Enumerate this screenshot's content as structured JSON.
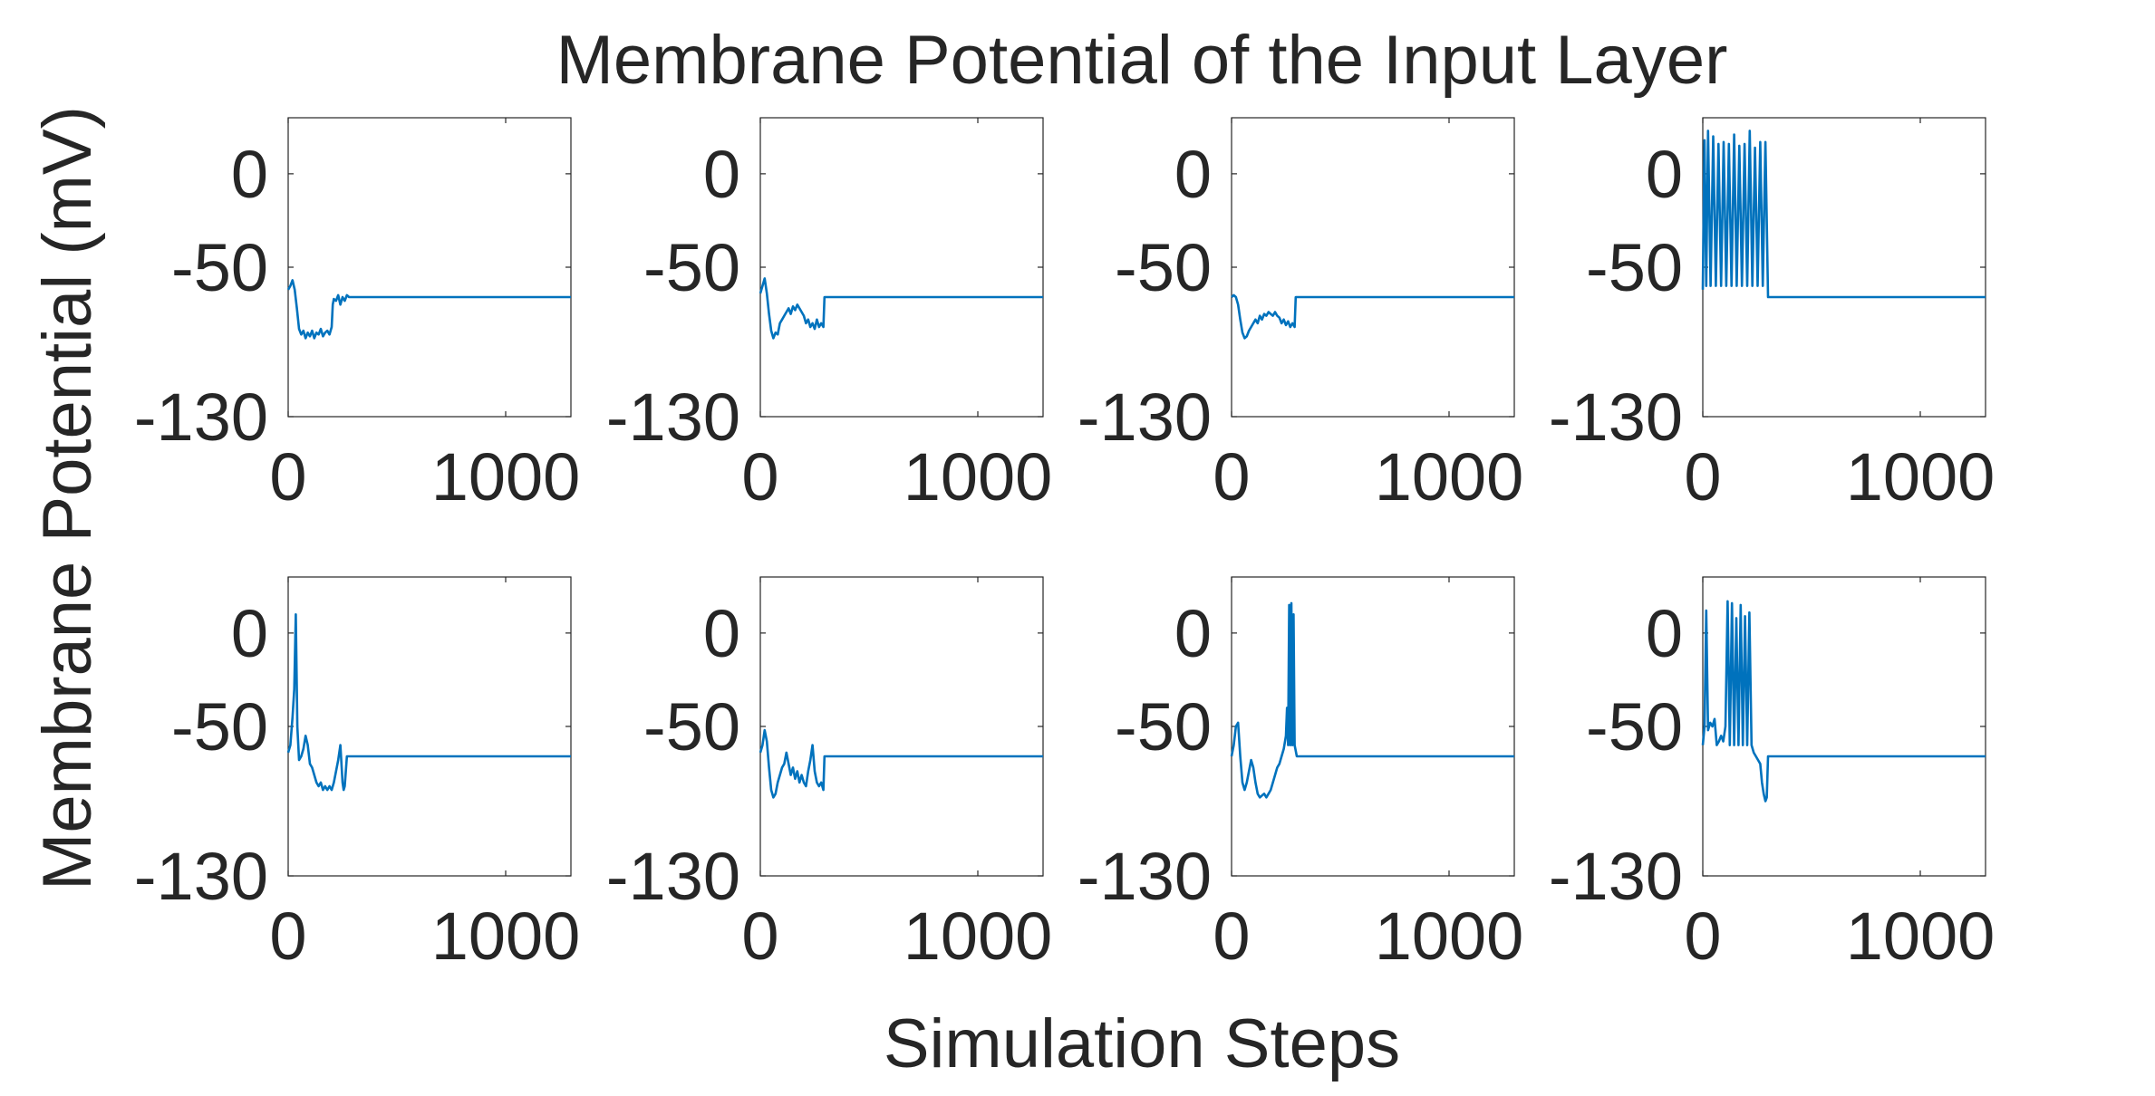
{
  "figure": {
    "title": "Membrane Potential of the Input Layer",
    "xlabel": "Simulation Steps",
    "ylabel": "Membrane Potential (mV)",
    "line_color": "#0072BD",
    "axis_color": "#262626"
  },
  "chart_data": [
    {
      "type": "line",
      "row": 1,
      "col": 1,
      "xlim": [
        0,
        1300
      ],
      "ylim": [
        -130,
        30
      ],
      "yticks": [
        -130,
        -50,
        0
      ],
      "ytick_labels": [
        "-130",
        "-50",
        "0"
      ],
      "xticks": [
        0,
        1000
      ],
      "xtick_labels": [
        "0",
        "1000"
      ],
      "series": [
        {
          "x": [
            0,
            10,
            20,
            30,
            40,
            50,
            60,
            70,
            80,
            90,
            100,
            110,
            120,
            130,
            140,
            150,
            160,
            170,
            180,
            190,
            200,
            205,
            210,
            220,
            230,
            240,
            250,
            260,
            270,
            280,
            300,
            1300
          ],
          "y": [
            -62,
            -60,
            -57,
            -62,
            -72,
            -83,
            -86,
            -84,
            -88,
            -85,
            -87,
            -84,
            -88,
            -85,
            -86,
            -83,
            -87,
            -85,
            -84,
            -86,
            -82,
            -70,
            -67,
            -68,
            -65,
            -70,
            -66,
            -68,
            -65,
            -66,
            -66,
            -66
          ]
        }
      ]
    },
    {
      "type": "line",
      "row": 1,
      "col": 2,
      "xlim": [
        0,
        1300
      ],
      "ylim": [
        -130,
        30
      ],
      "yticks": [
        -130,
        -50,
        0
      ],
      "ytick_labels": [
        "-130",
        "-50",
        "0"
      ],
      "xticks": [
        0,
        1000
      ],
      "xtick_labels": [
        "0",
        "1000"
      ],
      "series": [
        {
          "x": [
            0,
            10,
            20,
            30,
            40,
            50,
            60,
            70,
            80,
            90,
            100,
            110,
            120,
            130,
            140,
            150,
            160,
            170,
            180,
            190,
            200,
            210,
            220,
            230,
            240,
            250,
            260,
            270,
            280,
            290,
            295,
            300,
            1300
          ],
          "y": [
            -64,
            -60,
            -56,
            -64,
            -75,
            -84,
            -88,
            -85,
            -86,
            -80,
            -78,
            -76,
            -74,
            -72,
            -75,
            -71,
            -73,
            -70,
            -72,
            -74,
            -76,
            -80,
            -78,
            -82,
            -80,
            -83,
            -78,
            -82,
            -80,
            -82,
            -66,
            -66,
            -66
          ]
        }
      ]
    },
    {
      "type": "line",
      "row": 1,
      "col": 3,
      "xlim": [
        0,
        1300
      ],
      "ylim": [
        -130,
        30
      ],
      "yticks": [
        -130,
        -50,
        0
      ],
      "ytick_labels": [
        "-130",
        "-50",
        "0"
      ],
      "xticks": [
        0,
        1000
      ],
      "xtick_labels": [
        "0",
        "1000"
      ],
      "series": [
        {
          "x": [
            0,
            10,
            20,
            30,
            40,
            50,
            60,
            70,
            80,
            90,
            100,
            110,
            120,
            130,
            140,
            150,
            160,
            170,
            180,
            190,
            200,
            210,
            220,
            230,
            240,
            250,
            260,
            270,
            280,
            290,
            295,
            300,
            1300
          ],
          "y": [
            -66,
            -65,
            -66,
            -70,
            -78,
            -85,
            -88,
            -87,
            -84,
            -82,
            -80,
            -78,
            -80,
            -76,
            -78,
            -75,
            -76,
            -74,
            -75,
            -76,
            -74,
            -76,
            -77,
            -80,
            -78,
            -81,
            -79,
            -82,
            -80,
            -82,
            -66,
            -66,
            -66
          ]
        }
      ]
    },
    {
      "type": "line",
      "row": 1,
      "col": 4,
      "xlim": [
        0,
        1300
      ],
      "ylim": [
        -130,
        30
      ],
      "yticks": [
        -130,
        -50,
        0
      ],
      "ytick_labels": [
        "-130",
        "-50",
        "0"
      ],
      "xticks": [
        0,
        1000
      ],
      "xtick_labels": [
        "0",
        "1000"
      ],
      "series": [
        {
          "x": [
            0,
            8,
            16,
            24,
            36,
            48,
            60,
            72,
            84,
            96,
            108,
            120,
            132,
            144,
            156,
            168,
            180,
            192,
            204,
            216,
            228,
            240,
            252,
            264,
            276,
            288,
            300,
            1300
          ],
          "y": [
            -62,
            18,
            -60,
            23,
            -60,
            20,
            -60,
            16,
            -60,
            17,
            -60,
            16,
            -60,
            21,
            -60,
            15,
            -60,
            16,
            -60,
            23,
            -60,
            14,
            -60,
            17,
            -60,
            17,
            -66,
            -66
          ]
        }
      ]
    },
    {
      "type": "line",
      "row": 2,
      "col": 1,
      "xlim": [
        0,
        1300
      ],
      "ylim": [
        -130,
        30
      ],
      "yticks": [
        -130,
        -50,
        0
      ],
      "ytick_labels": [
        "-130",
        "-50",
        "0"
      ],
      "xticks": [
        0,
        1000
      ],
      "xtick_labels": [
        "0",
        "1000"
      ],
      "series": [
        {
          "x": [
            0,
            10,
            20,
            28,
            35,
            42,
            50,
            60,
            70,
            80,
            90,
            100,
            110,
            120,
            130,
            140,
            150,
            160,
            170,
            180,
            190,
            200,
            210,
            220,
            230,
            240,
            250,
            255,
            260,
            270,
            280,
            300,
            1300
          ],
          "y": [
            -64,
            -60,
            -45,
            -30,
            10,
            -50,
            -68,
            -66,
            -62,
            -55,
            -60,
            -70,
            -72,
            -76,
            -80,
            -82,
            -80,
            -84,
            -82,
            -84,
            -82,
            -84,
            -80,
            -74,
            -68,
            -60,
            -80,
            -84,
            -82,
            -66,
            -66,
            -66,
            -66
          ]
        }
      ]
    },
    {
      "type": "line",
      "row": 2,
      "col": 2,
      "xlim": [
        0,
        1300
      ],
      "ylim": [
        -130,
        30
      ],
      "yticks": [
        -130,
        -50,
        0
      ],
      "ytick_labels": [
        "-130",
        "-50",
        "0"
      ],
      "xticks": [
        0,
        1000
      ],
      "xtick_labels": [
        "0",
        "1000"
      ],
      "series": [
        {
          "x": [
            0,
            10,
            20,
            30,
            40,
            50,
            60,
            70,
            80,
            90,
            100,
            110,
            120,
            130,
            140,
            150,
            160,
            170,
            180,
            190,
            200,
            210,
            220,
            230,
            240,
            250,
            260,
            270,
            280,
            290,
            295,
            300,
            1300
          ],
          "y": [
            -64,
            -60,
            -52,
            -58,
            -72,
            -84,
            -88,
            -86,
            -80,
            -76,
            -72,
            -70,
            -64,
            -70,
            -76,
            -72,
            -78,
            -74,
            -80,
            -76,
            -80,
            -82,
            -74,
            -68,
            -60,
            -74,
            -80,
            -82,
            -80,
            -84,
            -66,
            -66,
            -66
          ]
        }
      ]
    },
    {
      "type": "line",
      "row": 2,
      "col": 3,
      "xlim": [
        0,
        1300
      ],
      "ylim": [
        -130,
        30
      ],
      "yticks": [
        -130,
        -50,
        0
      ],
      "ytick_labels": [
        "-130",
        "-50",
        "0"
      ],
      "xticks": [
        0,
        1000
      ],
      "xtick_labels": [
        "0",
        "1000"
      ],
      "series": [
        {
          "x": [
            0,
            10,
            20,
            30,
            40,
            50,
            60,
            70,
            80,
            90,
            100,
            110,
            120,
            130,
            140,
            150,
            160,
            170,
            180,
            190,
            200,
            210,
            220,
            230,
            240,
            250,
            255,
            260,
            265,
            270,
            275,
            280,
            285,
            290,
            300,
            1300
          ],
          "y": [
            -66,
            -60,
            -50,
            -48,
            -66,
            -80,
            -84,
            -80,
            -74,
            -68,
            -72,
            -80,
            -86,
            -88,
            -87,
            -86,
            -88,
            -86,
            -84,
            -80,
            -76,
            -72,
            -70,
            -66,
            -62,
            -55,
            -40,
            -60,
            15,
            -60,
            16,
            -60,
            10,
            -60,
            -66,
            -66
          ]
        }
      ]
    },
    {
      "type": "line",
      "row": 2,
      "col": 4,
      "xlim": [
        0,
        1300
      ],
      "ylim": [
        -130,
        30
      ],
      "yticks": [
        -130,
        -50,
        0
      ],
      "ytick_labels": [
        "-130",
        "-50",
        "0"
      ],
      "xticks": [
        0,
        1000
      ],
      "xtick_labels": [
        "0",
        "1000"
      ],
      "series": [
        {
          "x": [
            0,
            8,
            16,
            24,
            34,
            44,
            54,
            64,
            74,
            84,
            94,
            104,
            114,
            124,
            134,
            144,
            154,
            164,
            174,
            184,
            194,
            204,
            214,
            224,
            234,
            244,
            254,
            264,
            272,
            280,
            288,
            294,
            300,
            1300
          ],
          "y": [
            -60,
            -50,
            12,
            -52,
            -48,
            -50,
            -46,
            -60,
            -58,
            -55,
            -58,
            -50,
            17,
            -60,
            16,
            -60,
            8,
            -60,
            15,
            -60,
            9,
            -60,
            11,
            -60,
            -64,
            -66,
            -68,
            -70,
            -80,
            -86,
            -90,
            -88,
            -66,
            -66
          ]
        }
      ]
    }
  ]
}
